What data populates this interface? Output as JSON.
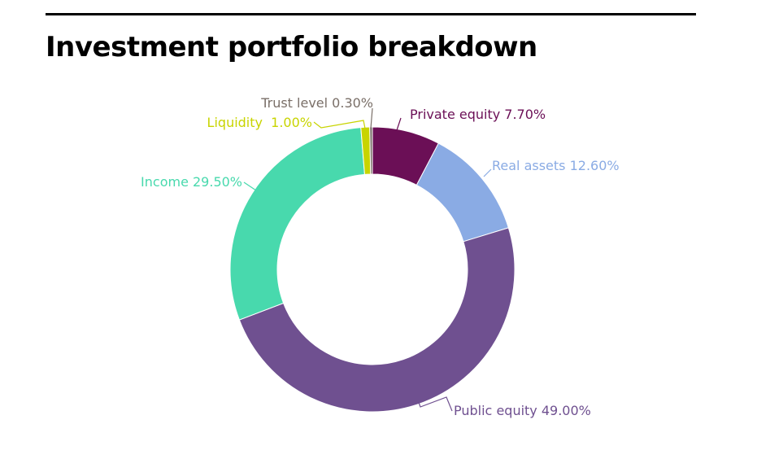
{
  "chart_data": {
    "type": "pie",
    "donut": true,
    "title": "Investment portfolio breakdown",
    "start": "top, clockwise",
    "slices": [
      {
        "name": "Private equity",
        "value": 7.7,
        "label": "Private equity 7.70%",
        "color": "#6b0f56"
      },
      {
        "name": "Real assets",
        "value": 12.6,
        "label": "Real assets 12.60%",
        "color": "#8aabe4"
      },
      {
        "name": "Public equity",
        "value": 49.0,
        "label": "Public equity 49.00%",
        "color": "#6f5090"
      },
      {
        "name": "Income",
        "value": 29.5,
        "label": "Income 29.50%",
        "color": "#48d9ad"
      },
      {
        "name": "Liquidity",
        "value": 1.0,
        "label": "Liquidity  1.00%",
        "color": "#c8d400"
      },
      {
        "name": "Trust level",
        "value": 0.3,
        "label": "Trust level 0.30%",
        "color": "#7a6f68"
      }
    ]
  }
}
